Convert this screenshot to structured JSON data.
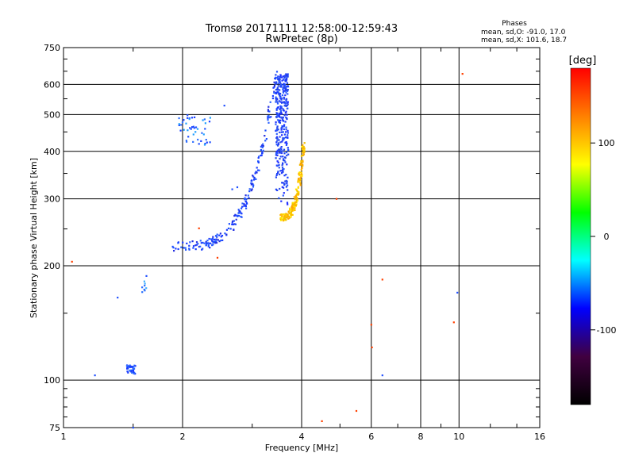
{
  "chart_data": {
    "type": "scatter",
    "title": "Tromsø 20171111 12:58:00-12:59:43",
    "subtitle": "RwPretec (8p)",
    "xlabel": "Frequency [MHz]",
    "ylabel": "Stationary phase Virtual Height [km]",
    "xscale": "log",
    "yscale": "log",
    "xlim": [
      1,
      16
    ],
    "ylim": [
      75,
      750
    ],
    "xticks": [
      1,
      2,
      4,
      6,
      8,
      10,
      16
    ],
    "xtick_labels": [
      "1",
      "2",
      "4",
      "6",
      "8",
      "10",
      "16"
    ],
    "yticks": [
      75,
      100,
      200,
      300,
      400,
      500,
      600,
      750
    ],
    "ytick_labels": [
      "75",
      "100",
      "200",
      "300",
      "400",
      "500",
      "600",
      "750"
    ],
    "grid": true,
    "legend": {
      "title": "Phases",
      "lines": [
        "mean, sd,O: -91.0, 17.0",
        "mean, sd,X: 101.6, 18.7"
      ],
      "position": "top-right"
    },
    "colorbar": {
      "label": "[deg]",
      "range": [
        -180,
        180
      ],
      "ticks": [
        100,
        0,
        -100
      ],
      "tick_labels": [
        "100",
        "0",
        "-100"
      ],
      "stops": [
        "#ff0000",
        "#ff8000",
        "#ffff00",
        "#00ff00",
        "#00ffff",
        "#0000ff",
        "#400040",
        "#000000"
      ]
    },
    "series": [
      {
        "name": "O-mode",
        "segments": [
          {
            "kind": "curve",
            "f0": 1.88,
            "f1": 3.45,
            "h0": 225,
            "h1": 650,
            "n": 200,
            "jitter": 0.06,
            "colors": [
              "#1e50ff",
              "#1a3cff",
              "#2530e0",
              "#2a60ff"
            ]
          },
          {
            "kind": "column",
            "f0": 3.35,
            "f1": 3.7,
            "h0": 280,
            "h1": 640,
            "n": 340,
            "colors": [
              "#1a3cff",
              "#2030ff",
              "#2a5cff",
              "#1e44f0",
              "#3050e8"
            ]
          },
          {
            "kind": "cluster",
            "f0": 1.95,
            "f1": 2.35,
            "h0": 415,
            "h1": 500,
            "n": 45,
            "colors": [
              "#2050ff",
              "#3070ff",
              "#20a0ff",
              "#1a40ff"
            ]
          },
          {
            "kind": "cluster",
            "f0": 1.44,
            "f1": 1.52,
            "h0": 104,
            "h1": 110,
            "n": 40,
            "colors": [
              "#1a3cff",
              "#3070ff"
            ]
          },
          {
            "kind": "cluster",
            "f0": 1.58,
            "f1": 1.62,
            "h0": 170,
            "h1": 182,
            "n": 8,
            "colors": [
              "#2a70ff",
              "#40b0ff"
            ]
          },
          {
            "kind": "points",
            "f": [
              1.2,
              1.37,
              1.62,
              2.67,
              2.55,
              1.5,
              6.4,
              9.9,
              2.75
            ],
            "h": [
              103,
              165,
              188,
              318,
              528,
              75,
              103,
              170,
              322
            ],
            "color": "#2050ff"
          }
        ]
      },
      {
        "name": "X-mode",
        "segments": [
          {
            "kind": "curve",
            "f0": 3.55,
            "f1": 4.05,
            "h0": 268,
            "h1": 420,
            "n": 200,
            "jitter": 0.04,
            "colors": [
              "#ffd000",
              "#ffb000",
              "#ffe600",
              "#f0c000",
              "#ffa800"
            ]
          },
          {
            "kind": "points",
            "f": [
              1.05,
              6.0,
              6.02,
              9.7,
              10.2,
              2.2,
              2.45,
              4.9,
              5.5,
              6.4,
              4.5
            ],
            "h": [
              205,
              140,
              122,
              142,
              640,
              251,
              210,
              300,
              83,
              184,
              78
            ],
            "color": "#ff4000"
          }
        ]
      }
    ]
  }
}
